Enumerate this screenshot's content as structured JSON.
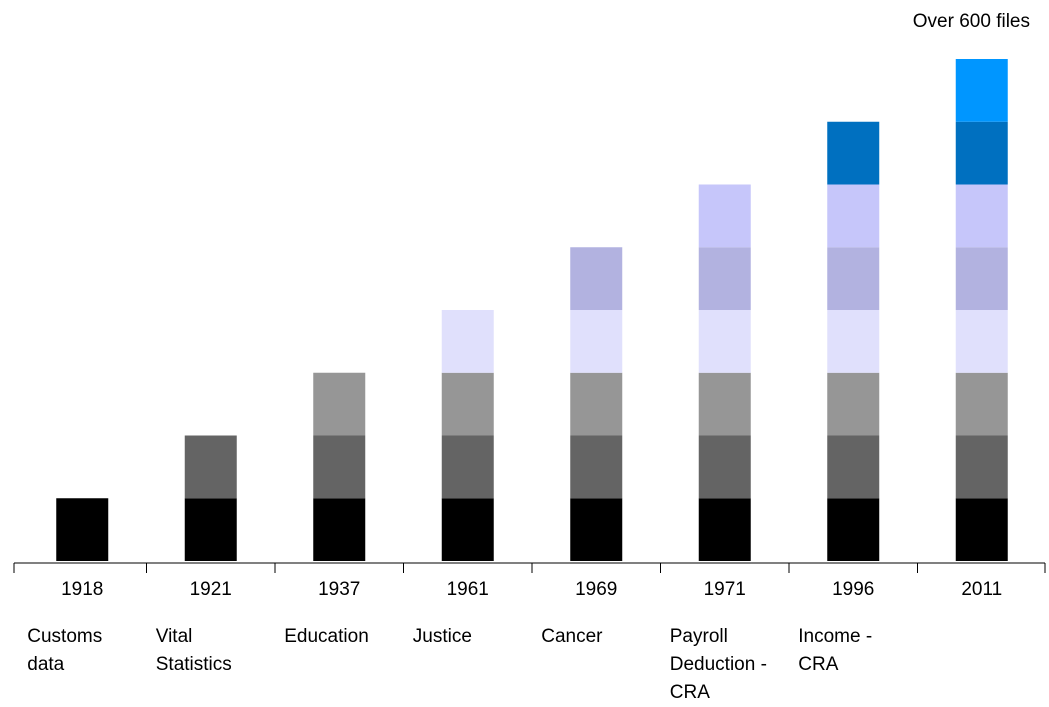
{
  "chart_data": {
    "type": "stacked_bar",
    "annotation": "Over 600 files",
    "categories": [
      "1918",
      "1921",
      "1937",
      "1961",
      "1969",
      "1971",
      "1996",
      "2011"
    ],
    "descriptions": [
      "Customs data",
      "Vital Statistics",
      "Education",
      "Justice",
      "Cancer",
      "Payroll Deduction - CRA",
      "Income - CRA",
      null
    ],
    "series": [
      {
        "color": "#000000",
        "values": [
          1,
          1,
          1,
          1,
          1,
          1,
          1,
          1
        ]
      },
      {
        "color": "#646464",
        "values": [
          null,
          1,
          1,
          1,
          1,
          1,
          1,
          1
        ]
      },
      {
        "color": "#969696",
        "values": [
          null,
          null,
          1,
          1,
          1,
          1,
          1,
          1
        ]
      },
      {
        "color": "#e0e0fc",
        "values": [
          null,
          null,
          null,
          1,
          1,
          1,
          1,
          1
        ]
      },
      {
        "color": "#b2b2e0",
        "values": [
          null,
          null,
          null,
          null,
          1,
          1,
          1,
          1
        ]
      },
      {
        "color": "#c6c6fa",
        "values": [
          null,
          null,
          null,
          null,
          null,
          1,
          1,
          1
        ]
      },
      {
        "color": "#0070c0",
        "values": [
          null,
          null,
          null,
          null,
          null,
          null,
          1,
          1
        ]
      },
      {
        "color": "#0096ff",
        "values": [
          null,
          null,
          null,
          null,
          null,
          null,
          null,
          1
        ]
      }
    ],
    "ylim": [
      0,
      8
    ]
  }
}
